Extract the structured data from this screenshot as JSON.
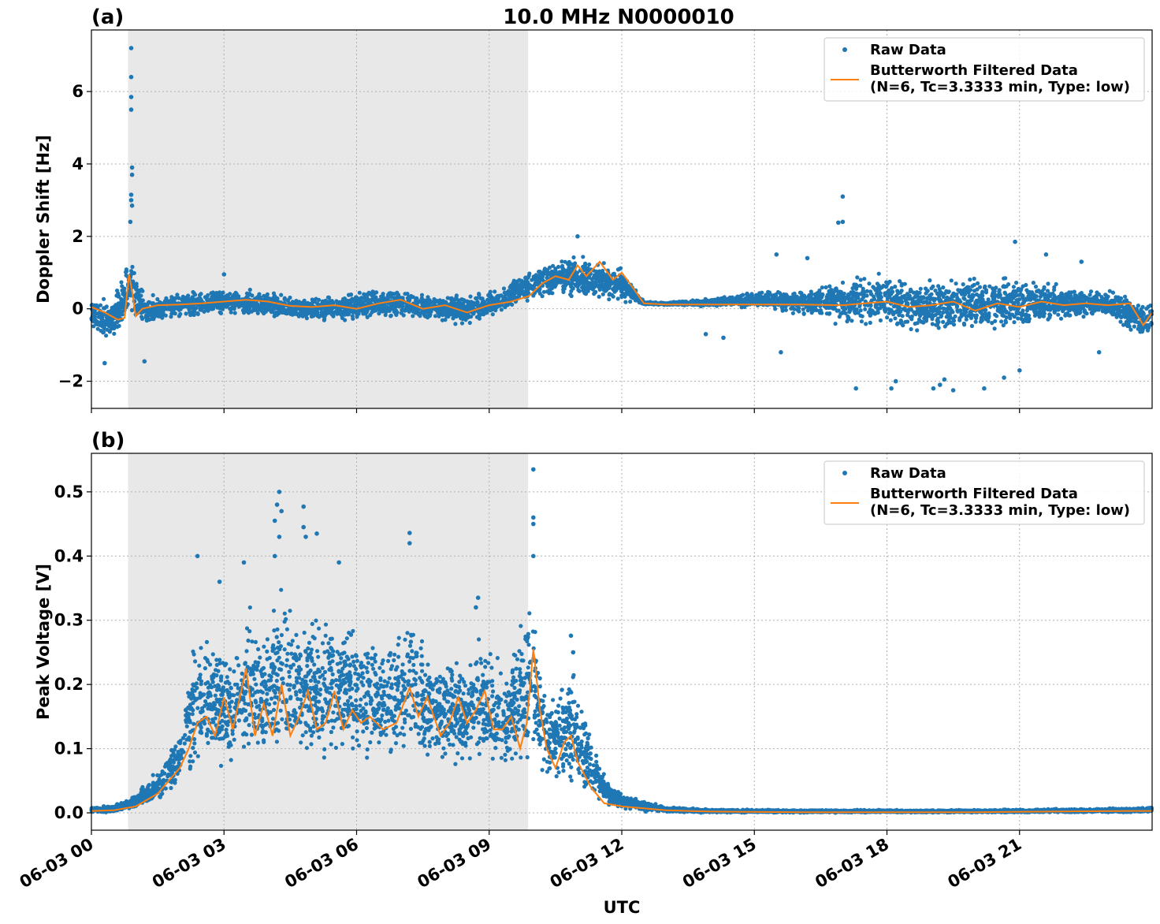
{
  "figure": {
    "title": "10.0 MHz N0000010",
    "xlabel": "UTC"
  },
  "colors": {
    "raw": "#1f77b4",
    "filtered": "#ff7f0e",
    "shade": "#e8e8e8",
    "grid": "#b0b0b0"
  },
  "legend": {
    "raw_label": "Raw Data",
    "filtered_label_line1": "Butterworth Filtered Data",
    "filtered_label_line2": "(N=6, Tc=3.3333 min, Type: low)"
  },
  "x_ticks": [
    "06-03 00",
    "06-03 03",
    "06-03 06",
    "06-03 09",
    "06-03 12",
    "06-03 15",
    "06-03 18",
    "06-03 21"
  ],
  "chart_data": [
    {
      "type": "scatter",
      "panel_label": "(a)",
      "title": "10.0 MHz N0000010",
      "xlabel": "",
      "ylabel": "Doppler Shift [Hz]",
      "x_unit": "hours UTC on 06-03",
      "xlim": [
        0,
        24
      ],
      "ylim": [
        -2.75,
        7.7
      ],
      "y_ticks": [
        -2,
        0,
        2,
        4,
        6
      ],
      "y_tick_labels": [
        "−2",
        "0",
        "2",
        "4",
        "6"
      ],
      "grid": true,
      "legend_position": "top-right",
      "shaded_interval": [
        0.83,
        9.88
      ],
      "series": [
        {
          "name": "Raw Data",
          "style": "points",
          "envelope": {
            "x": [
              0,
              0.5,
              0.85,
              1.2,
              2,
              3,
              4,
              5,
              6,
              7,
              8,
              8.5,
              9,
              9.9,
              10.5,
              11,
              11.5,
              12,
              12.5,
              13,
              14,
              15,
              16,
              17,
              18,
              19,
              20,
              21,
              22,
              23,
              23.7,
              24
            ],
            "y_low": [
              -0.7,
              -0.9,
              -0.5,
              -0.6,
              -0.3,
              -0.2,
              -0.3,
              -0.4,
              -0.4,
              -0.3,
              -0.4,
              -0.5,
              -0.3,
              0.2,
              0.3,
              0.2,
              0.2,
              0.1,
              0.12,
              0.1,
              0.05,
              0.0,
              -0.2,
              -0.5,
              -0.7,
              -0.8,
              -0.7,
              -0.6,
              -0.4,
              -0.3,
              -0.9,
              -0.8
            ],
            "y_high": [
              0.4,
              0.3,
              1.8,
              0.4,
              0.5,
              0.6,
              0.5,
              0.35,
              0.55,
              0.6,
              0.4,
              0.45,
              0.55,
              1.1,
              1.4,
              1.6,
              1.3,
              1.2,
              0.2,
              0.18,
              0.3,
              0.5,
              0.6,
              0.9,
              1.1,
              1.0,
              1.0,
              1.0,
              0.7,
              0.6,
              0.3,
              0.3
            ]
          },
          "outliers": [
            {
              "x": 0.9,
              "y": 7.2
            },
            {
              "x": 0.9,
              "y": 6.4
            },
            {
              "x": 0.9,
              "y": 5.85
            },
            {
              "x": 0.9,
              "y": 5.5
            },
            {
              "x": 0.92,
              "y": 3.9
            },
            {
              "x": 0.92,
              "y": 3.7
            },
            {
              "x": 0.9,
              "y": 3.15
            },
            {
              "x": 0.9,
              "y": 3.0
            },
            {
              "x": 0.92,
              "y": 2.85
            },
            {
              "x": 0.88,
              "y": 2.4
            },
            {
              "x": 0.3,
              "y": -1.5
            },
            {
              "x": 1.2,
              "y": -1.45
            },
            {
              "x": 17.0,
              "y": 3.1
            },
            {
              "x": 17.0,
              "y": 2.4
            },
            {
              "x": 16.9,
              "y": 2.38
            },
            {
              "x": 11.0,
              "y": 2.0
            },
            {
              "x": 20.9,
              "y": 1.85
            },
            {
              "x": 18.1,
              "y": -2.2
            },
            {
              "x": 18.2,
              "y": -2.0
            },
            {
              "x": 19.05,
              "y": -2.2
            },
            {
              "x": 19.2,
              "y": -2.1
            },
            {
              "x": 19.3,
              "y": -1.95
            },
            {
              "x": 19.5,
              "y": -2.25
            },
            {
              "x": 20.2,
              "y": -2.2
            },
            {
              "x": 20.65,
              "y": -1.9
            },
            {
              "x": 17.3,
              "y": -2.2
            },
            {
              "x": 21.6,
              "y": 1.5
            },
            {
              "x": 22.4,
              "y": 1.3
            },
            {
              "x": 3.0,
              "y": 0.95
            },
            {
              "x": 15.5,
              "y": 1.5
            },
            {
              "x": 16.2,
              "y": 1.4
            },
            {
              "x": 14.3,
              "y": -0.8
            },
            {
              "x": 13.9,
              "y": -0.7
            },
            {
              "x": 15.6,
              "y": -1.2
            },
            {
              "x": 22.8,
              "y": -1.2
            },
            {
              "x": 21.0,
              "y": -1.7
            }
          ]
        },
        {
          "name": "Butterworth Filtered Data\n(N=6, Tc=3.3333 min, Type: low)",
          "style": "line",
          "x": [
            0,
            0.3,
            0.6,
            0.75,
            0.85,
            0.92,
            1.0,
            1.15,
            1.5,
            2,
            2.5,
            3,
            3.5,
            4,
            4.5,
            5,
            5.5,
            6,
            6.5,
            7,
            7.5,
            8,
            8.5,
            9,
            9.5,
            9.9,
            10.2,
            10.5,
            10.8,
            11.0,
            11.2,
            11.5,
            11.8,
            12.0,
            12.3,
            12.5,
            13,
            14,
            15,
            16,
            17,
            17.5,
            18,
            18.5,
            19,
            19.5,
            20,
            20.5,
            21,
            21.5,
            22,
            22.5,
            23,
            23.5,
            23.8,
            24
          ],
          "y": [
            0.05,
            -0.1,
            -0.3,
            -0.25,
            0.95,
            0.5,
            -0.2,
            0.0,
            0.1,
            0.12,
            0.15,
            0.2,
            0.25,
            0.2,
            0.08,
            0.05,
            0.1,
            0.0,
            0.15,
            0.25,
            0.0,
            0.1,
            -0.1,
            0.1,
            0.2,
            0.35,
            0.7,
            0.9,
            0.8,
            1.2,
            0.9,
            1.3,
            0.8,
            1.0,
            0.5,
            0.15,
            0.12,
            0.12,
            0.12,
            0.12,
            0.1,
            0.15,
            0.2,
            0.05,
            0.1,
            0.2,
            -0.05,
            0.15,
            0.05,
            0.2,
            0.1,
            0.15,
            0.1,
            0.15,
            -0.45,
            -0.1
          ]
        }
      ]
    },
    {
      "type": "scatter",
      "panel_label": "(b)",
      "title": "",
      "xlabel": "UTC",
      "ylabel": "Peak Voltage [V]",
      "x_unit": "hours UTC on 06-03",
      "xlim": [
        0,
        24
      ],
      "ylim": [
        -0.027,
        0.56
      ],
      "y_ticks": [
        0.0,
        0.1,
        0.2,
        0.3,
        0.4,
        0.5
      ],
      "y_tick_labels": [
        "0.0",
        "0.1",
        "0.2",
        "0.3",
        "0.4",
        "0.5"
      ],
      "grid": true,
      "legend_position": "top-right",
      "shaded_interval": [
        0.83,
        9.88
      ],
      "series": [
        {
          "name": "Raw Data",
          "style": "points",
          "envelope": {
            "x": [
              0,
              0.5,
              1.0,
              1.5,
              2.0,
              2.3,
              2.5,
              2.8,
              3.2,
              3.5,
              4.0,
              4.3,
              4.7,
              5.0,
              5.5,
              6.0,
              6.5,
              7.0,
              7.3,
              7.6,
              8.0,
              8.5,
              8.8,
              9.2,
              9.6,
              9.95,
              10.2,
              10.5,
              10.9,
              11.2,
              11.6,
              12.0,
              12.6,
              13.0,
              14.0,
              16.0,
              20.0,
              23.5,
              24.0
            ],
            "y_low": [
              0.0,
              0.0,
              0.005,
              0.01,
              0.03,
              0.05,
              0.06,
              0.05,
              0.05,
              0.06,
              0.06,
              0.05,
              0.06,
              0.05,
              0.06,
              0.07,
              0.06,
              0.07,
              0.07,
              0.06,
              0.07,
              0.07,
              0.06,
              0.06,
              0.05,
              0.08,
              0.05,
              0.04,
              0.03,
              0.02,
              0.01,
              0.005,
              0.0,
              0.0,
              0.0,
              0.0,
              0.0,
              0.0,
              0.0
            ],
            "y_high": [
              0.01,
              0.012,
              0.03,
              0.07,
              0.14,
              0.27,
              0.3,
              0.28,
              0.27,
              0.33,
              0.3,
              0.38,
              0.34,
              0.33,
              0.35,
              0.3,
              0.27,
              0.3,
              0.35,
              0.27,
              0.25,
              0.24,
              0.3,
              0.25,
              0.28,
              0.36,
              0.22,
              0.2,
              0.24,
              0.16,
              0.06,
              0.03,
              0.02,
              0.01,
              0.006,
              0.005,
              0.005,
              0.008,
              0.01
            ]
          },
          "outliers": [
            {
              "x": 10.0,
              "y": 0.535
            },
            {
              "x": 10.0,
              "y": 0.46
            },
            {
              "x": 10.0,
              "y": 0.45
            },
            {
              "x": 10.0,
              "y": 0.4
            },
            {
              "x": 4.25,
              "y": 0.5
            },
            {
              "x": 4.2,
              "y": 0.48
            },
            {
              "x": 4.3,
              "y": 0.47
            },
            {
              "x": 4.15,
              "y": 0.455
            },
            {
              "x": 4.25,
              "y": 0.43
            },
            {
              "x": 4.8,
              "y": 0.477
            },
            {
              "x": 4.8,
              "y": 0.445
            },
            {
              "x": 4.85,
              "y": 0.43
            },
            {
              "x": 5.1,
              "y": 0.435
            },
            {
              "x": 7.2,
              "y": 0.436
            },
            {
              "x": 7.2,
              "y": 0.42
            },
            {
              "x": 4.15,
              "y": 0.4
            },
            {
              "x": 5.6,
              "y": 0.39
            },
            {
              "x": 2.4,
              "y": 0.4
            },
            {
              "x": 10.85,
              "y": 0.276
            },
            {
              "x": 10.9,
              "y": 0.25
            },
            {
              "x": 2.9,
              "y": 0.36
            },
            {
              "x": 3.45,
              "y": 0.39
            },
            {
              "x": 8.75,
              "y": 0.335
            },
            {
              "x": 8.7,
              "y": 0.32
            }
          ]
        },
        {
          "name": "Butterworth Filtered Data\n(N=6, Tc=3.3333 min, Type: low)",
          "style": "line",
          "x": [
            0,
            0.5,
            1.0,
            1.5,
            2.0,
            2.2,
            2.4,
            2.6,
            2.8,
            3.0,
            3.2,
            3.5,
            3.7,
            3.9,
            4.1,
            4.3,
            4.5,
            4.7,
            4.9,
            5.1,
            5.3,
            5.5,
            5.7,
            5.9,
            6.1,
            6.3,
            6.6,
            6.9,
            7.2,
            7.4,
            7.6,
            7.9,
            8.1,
            8.3,
            8.5,
            8.7,
            8.9,
            9.1,
            9.3,
            9.5,
            9.7,
            9.85,
            10.0,
            10.15,
            10.3,
            10.5,
            10.7,
            10.85,
            11.0,
            11.3,
            11.6,
            12.0,
            12.5,
            13.0,
            14.0,
            16.0,
            20.0,
            23.5,
            24.0
          ],
          "y": [
            0.003,
            0.004,
            0.01,
            0.03,
            0.07,
            0.1,
            0.14,
            0.15,
            0.12,
            0.18,
            0.13,
            0.225,
            0.12,
            0.17,
            0.12,
            0.2,
            0.12,
            0.15,
            0.19,
            0.13,
            0.14,
            0.19,
            0.13,
            0.16,
            0.14,
            0.15,
            0.13,
            0.14,
            0.195,
            0.15,
            0.18,
            0.12,
            0.14,
            0.18,
            0.14,
            0.16,
            0.19,
            0.13,
            0.13,
            0.15,
            0.1,
            0.14,
            0.255,
            0.16,
            0.1,
            0.07,
            0.11,
            0.12,
            0.08,
            0.04,
            0.015,
            0.01,
            0.007,
            0.004,
            0.002,
            0.001,
            0.001,
            0.003,
            0.003
          ]
        }
      ]
    }
  ]
}
